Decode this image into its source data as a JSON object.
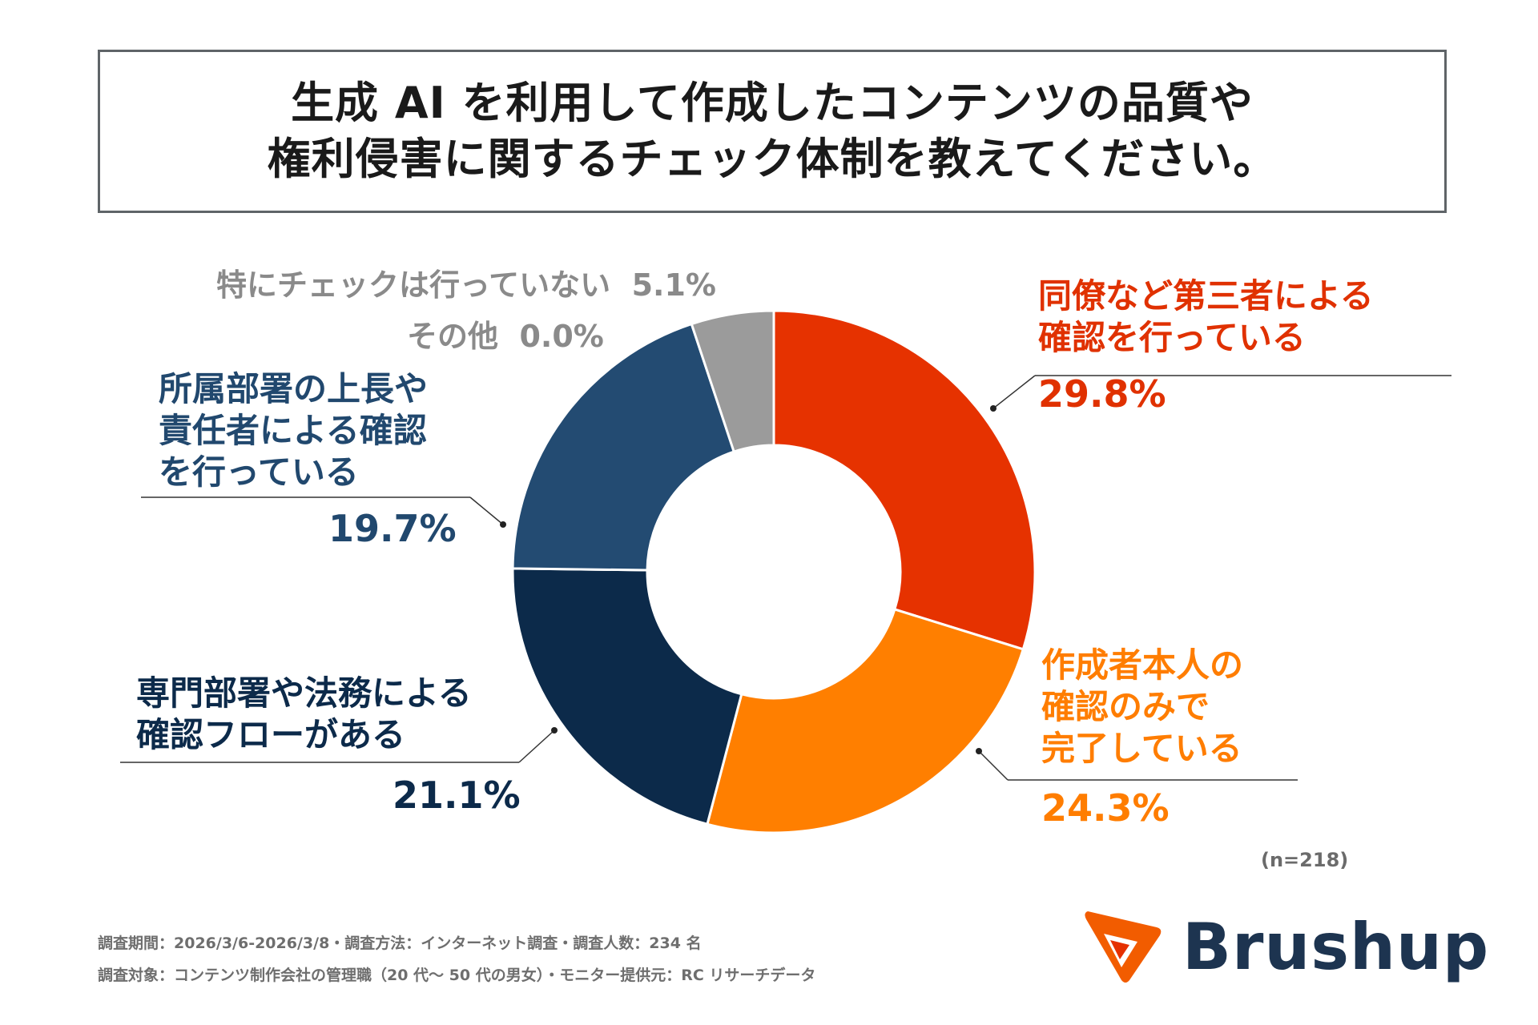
{
  "title": {
    "line1": "生成 AI を利用して作成したコンテンツの品質や",
    "line2": "権利侵害に関するチェック体制を教えてください。"
  },
  "chart_data": {
    "type": "pie",
    "variant": "donut",
    "categories": [
      "同僚など第三者による確認を行っている",
      "作成者本人の確認のみで完了している",
      "専門部署や法務による確認フローがある",
      "所属部署の上長や責任者による確認を行っている",
      "その他",
      "特にチェックは行っていない"
    ],
    "values": [
      29.8,
      24.3,
      21.1,
      19.7,
      0.0,
      5.1
    ],
    "colors": [
      "#e63200",
      "#ff7f00",
      "#0c2a4a",
      "#234b72",
      "#9b9b9b",
      "#9b9b9b"
    ],
    "unit": "%"
  },
  "labels": {
    "peer": {
      "line1": "同僚など第三者による",
      "line2": "確認を行っている",
      "value": "29.8%"
    },
    "self": {
      "line1": "作成者本人の",
      "line2": "確認のみで",
      "line3": "完了している",
      "value": "24.3%"
    },
    "legal": {
      "line1": "専門部署や法務による",
      "line2": "確認フローがある",
      "value": "21.1%"
    },
    "boss": {
      "line1": "所属部署の上長や",
      "line2": "責任者による確認",
      "line3": "を行っている",
      "value": "19.7%"
    },
    "none": {
      "text": "特にチェックは行っていない",
      "value": "5.1%"
    },
    "other": {
      "text": "その他",
      "value": "0.0%"
    }
  },
  "sample_size": "(n=218)",
  "footer": {
    "line1": "調査期間：2026/3/6-2026/3/8・調査方法：インターネット調査・調査人数：234 名",
    "line2": "調査対象：コンテンツ制作会社の管理職（20 代～ 50 代の男女）・モニター提供元：RC リサーチデータ"
  },
  "logo": {
    "text": "Brushup"
  }
}
